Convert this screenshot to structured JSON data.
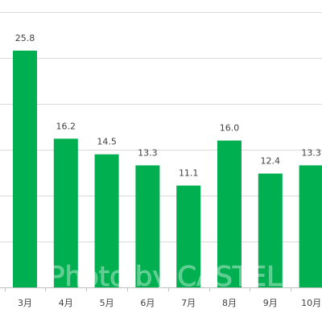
{
  "chart_data": {
    "type": "bar",
    "categories": [
      "3月",
      "4月",
      "5月",
      "6月",
      "7月",
      "8月",
      "9月",
      "10月"
    ],
    "values": [
      25.8,
      16.2,
      14.5,
      13.3,
      11.1,
      16.0,
      12.4,
      13.3
    ],
    "value_labels": [
      "25.8",
      "16.2",
      "14.5",
      "13.3",
      "11.1",
      "16.0",
      "12.4",
      "13.3"
    ],
    "title": "",
    "xlabel": "",
    "ylabel": "",
    "ylim": [
      0,
      30
    ],
    "grid": true,
    "legend": "none",
    "colors": {
      "bar": "#00b050",
      "grid": "#d9d9d9",
      "axis": "#bfbfbf",
      "text": "#404040"
    }
  },
  "watermark": "Photo by CASTEL"
}
